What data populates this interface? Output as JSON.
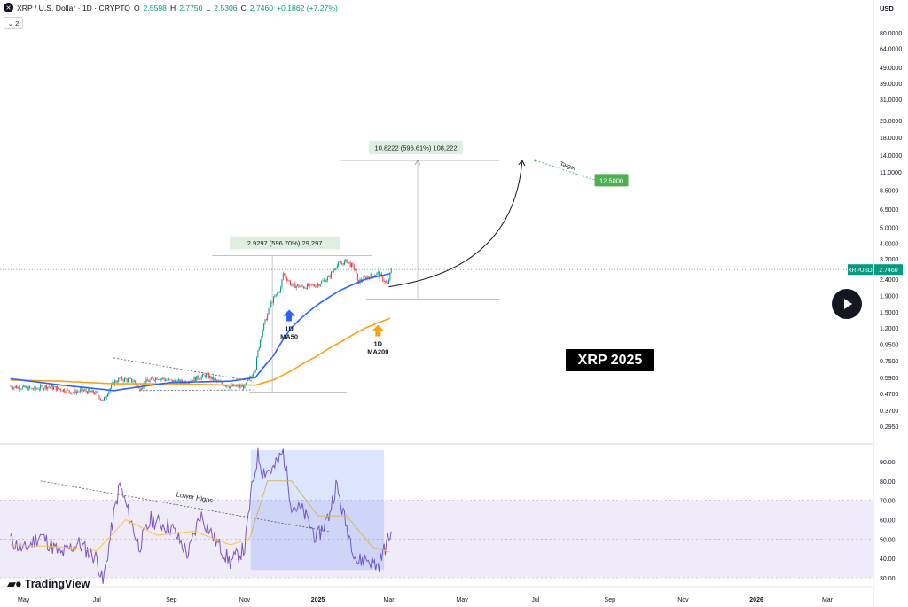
{
  "header": {
    "symbol_icon": "xrp-logo-icon",
    "title": "XRP / U.S. Dollar · 1D · CRYPTO",
    "o_label": "O",
    "o_value": "2.5598",
    "h_label": "H",
    "h_value": "2.7750",
    "l_label": "L",
    "l_value": "2.5306",
    "c_label": "C",
    "c_value": "2.7460",
    "change": "+0.1862 (+7.27%)",
    "indicators_count": "2",
    "indicators_icon": "chevron-down-icon"
  },
  "branding": {
    "logo_text": "TradingView",
    "logo_icon": "tradingview-logo-icon"
  },
  "colors": {
    "up": "#089981",
    "down": "#f23645",
    "ma50": "#2962ff",
    "ma200": "#f7a21b",
    "rsi": "#7e57c2",
    "rsi_ma": "#f7c548",
    "target": "#4caf50",
    "price_tag": "#089981"
  },
  "chart_data": [
    {
      "type": "line",
      "title": "",
      "y_scale": "log",
      "currency_label": "USD",
      "price_ticks": [
        "80.0000",
        "64.0000",
        "49.0000",
        "39.0000",
        "31.0000",
        "23.0000",
        "18.0000",
        "14.0000",
        "11.0000",
        "8.5000",
        "6.5000",
        "5.0000",
        "4.0000",
        "3.2000",
        "2.4000",
        "1.9000",
        "1.5000",
        "1.2000",
        "0.9500",
        "0.7500",
        "0.5900",
        "0.4700",
        "0.3700",
        "0.2950"
      ],
      "x_ticks": [
        "May",
        "Jul",
        "Sep",
        "Nov",
        "2025",
        "Mar",
        "May",
        "Jul",
        "Sep",
        "Nov",
        "2026",
        "Mar"
      ],
      "ylim": [
        0.29,
        100
      ],
      "series": [
        {
          "name": "",
          "kind": "candles",
          "dates": [
            "2024-04-20",
            "2024-05-01",
            "2024-05-10",
            "2024-05-20",
            "2024-06-01",
            "2024-06-10",
            "2024-06-20",
            "2024-07-01",
            "2024-07-06",
            "2024-07-15",
            "2024-07-20",
            "2024-08-01",
            "2024-08-05",
            "2024-08-10",
            "2024-08-20",
            "2024-09-01",
            "2024-09-10",
            "2024-09-20",
            "2024-09-30",
            "2024-10-10",
            "2024-10-20",
            "2024-11-01",
            "2024-11-05",
            "2024-11-10",
            "2024-11-15",
            "2024-11-20",
            "2024-11-23",
            "2024-12-01",
            "2024-12-03",
            "2024-12-10",
            "2024-12-20",
            "2024-12-31",
            "2025-01-10",
            "2025-01-16",
            "2025-01-25",
            "2025-02-01",
            "2025-02-03",
            "2025-02-10",
            "2025-02-20",
            "2025-02-28",
            "2025-03-03"
          ],
          "close": [
            0.52,
            0.51,
            0.5,
            0.52,
            0.5,
            0.48,
            0.49,
            0.47,
            0.42,
            0.55,
            0.58,
            0.56,
            0.5,
            0.55,
            0.59,
            0.56,
            0.55,
            0.58,
            0.61,
            0.55,
            0.52,
            0.52,
            0.58,
            0.68,
            1.1,
            1.45,
            1.7,
            2.1,
            2.6,
            2.2,
            2.15,
            2.2,
            2.45,
            2.9,
            3.1,
            2.75,
            2.3,
            2.45,
            2.6,
            2.2,
            2.746
          ]
        },
        {
          "name": "",
          "kind": "line",
          "dates": [
            "2024-04-20",
            "2024-06-01",
            "2024-07-15",
            "2024-09-01",
            "2024-10-20",
            "2024-11-10",
            "2024-11-25",
            "2024-12-10",
            "2024-12-31",
            "2025-01-20",
            "2025-02-10",
            "2025-03-03"
          ],
          "values": [
            0.58,
            0.53,
            0.49,
            0.55,
            0.56,
            0.59,
            0.8,
            1.2,
            1.65,
            2.05,
            2.4,
            2.6
          ]
        },
        {
          "name": "",
          "kind": "line",
          "dates": [
            "2024-04-20",
            "2024-06-01",
            "2024-07-15",
            "2024-09-01",
            "2024-10-20",
            "2024-11-10",
            "2024-11-25",
            "2024-12-10",
            "2024-12-31",
            "2025-01-20",
            "2025-02-10",
            "2025-03-03"
          ],
          "values": [
            0.57,
            0.56,
            0.54,
            0.54,
            0.53,
            0.53,
            0.57,
            0.65,
            0.8,
            0.98,
            1.2,
            1.38
          ]
        }
      ],
      "annotations": {
        "ma50_label": "1D\nMA50",
        "ma200_label": "1D\nMA200",
        "measure_1": "2.9297 (596.70%) 29,297",
        "measure_2": "10.8222 (596.61%) 108,222",
        "target_label": "Target",
        "target_value": "12.5000",
        "price_tag_symbol": "XRPUSD",
        "price_tag_value": "2.7460",
        "banner": "XRP 2025"
      }
    },
    {
      "type": "line",
      "title": "",
      "rsi_ticks": [
        "90.00",
        "80.00",
        "70.00",
        "60.00",
        "50.00",
        "40.00",
        "30.00"
      ],
      "ylim": [
        28,
        98
      ],
      "band": [
        30,
        70
      ],
      "series": [
        {
          "name": "",
          "dates": [
            "2024-04-20",
            "2024-05-01",
            "2024-05-15",
            "2024-06-01",
            "2024-06-15",
            "2024-07-01",
            "2024-07-06",
            "2024-07-15",
            "2024-07-20",
            "2024-08-05",
            "2024-08-15",
            "2024-09-01",
            "2024-09-15",
            "2024-09-25",
            "2024-10-05",
            "2024-10-20",
            "2024-11-01",
            "2024-11-06",
            "2024-11-12",
            "2024-11-16",
            "2024-11-25",
            "2024-12-03",
            "2024-12-10",
            "2024-12-20",
            "2024-12-31",
            "2025-01-10",
            "2025-01-16",
            "2025-01-25",
            "2025-02-03",
            "2025-02-10",
            "2025-02-20",
            "2025-03-03"
          ],
          "values": [
            50,
            44,
            52,
            42,
            48,
            40,
            27,
            62,
            78,
            46,
            60,
            56,
            42,
            63,
            52,
            38,
            45,
            72,
            94,
            85,
            86,
            95,
            68,
            64,
            50,
            62,
            78,
            56,
            38,
            40,
            36,
            54
          ]
        },
        {
          "name": "",
          "dates": [
            "2024-04-20",
            "2024-06-01",
            "2024-07-01",
            "2024-07-25",
            "2024-08-20",
            "2024-09-20",
            "2024-10-20",
            "2024-11-05",
            "2024-11-20",
            "2024-12-10",
            "2025-01-01",
            "2025-01-25",
            "2025-02-15",
            "2025-03-03"
          ],
          "values": [
            47,
            46,
            44,
            60,
            52,
            54,
            47,
            50,
            80,
            80,
            62,
            62,
            46,
            43
          ]
        }
      ],
      "annotations": {
        "trendline_label": "Lower Highs"
      }
    }
  ]
}
